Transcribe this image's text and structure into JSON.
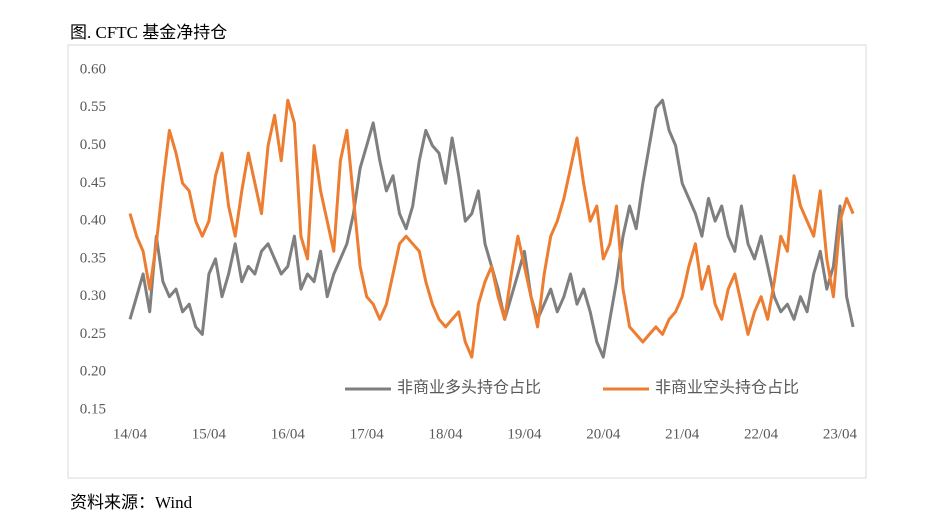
{
  "chart_data": {
    "type": "line",
    "title": "图. CFTC 基金净持仓",
    "source": "资料来源：Wind",
    "categories": [
      "14/04",
      null,
      null,
      null,
      null,
      null,
      null,
      null,
      null,
      null,
      null,
      null,
      "15/04",
      null,
      null,
      null,
      null,
      null,
      null,
      null,
      null,
      null,
      null,
      null,
      "16/04",
      null,
      null,
      null,
      null,
      null,
      null,
      null,
      null,
      null,
      null,
      null,
      "17/04",
      null,
      null,
      null,
      null,
      null,
      null,
      null,
      null,
      null,
      null,
      null,
      "18/04",
      null,
      null,
      null,
      null,
      null,
      null,
      null,
      null,
      null,
      null,
      null,
      "19/04",
      null,
      null,
      null,
      null,
      null,
      null,
      null,
      null,
      null,
      null,
      null,
      "20/04",
      null,
      null,
      null,
      null,
      null,
      null,
      null,
      null,
      null,
      null,
      null,
      "21/04",
      null,
      null,
      null,
      null,
      null,
      null,
      null,
      null,
      null,
      null,
      null,
      "22/04",
      null,
      null,
      null,
      null,
      null,
      null,
      null,
      null,
      null,
      null,
      null,
      "23/04",
      null,
      null
    ],
    "series": [
      {
        "name": "非商业多头持仓占比",
        "color": "#7f7f7f",
        "values": [
          0.27,
          0.3,
          0.33,
          0.28,
          0.38,
          0.32,
          0.3,
          0.31,
          0.28,
          0.29,
          0.26,
          0.25,
          0.33,
          0.35,
          0.3,
          0.33,
          0.37,
          0.32,
          0.34,
          0.33,
          0.36,
          0.37,
          0.35,
          0.33,
          0.34,
          0.38,
          0.31,
          0.33,
          0.32,
          0.36,
          0.3,
          0.33,
          0.35,
          0.37,
          0.41,
          0.47,
          0.5,
          0.53,
          0.48,
          0.44,
          0.46,
          0.41,
          0.39,
          0.42,
          0.48,
          0.52,
          0.5,
          0.49,
          0.45,
          0.51,
          0.46,
          0.4,
          0.41,
          0.44,
          0.37,
          0.34,
          0.31,
          0.27,
          0.3,
          0.33,
          0.36,
          0.3,
          0.27,
          0.29,
          0.31,
          0.28,
          0.3,
          0.33,
          0.29,
          0.31,
          0.28,
          0.24,
          0.22,
          0.27,
          0.32,
          0.38,
          0.42,
          0.39,
          0.45,
          0.5,
          0.55,
          0.56,
          0.52,
          0.5,
          0.45,
          0.43,
          0.41,
          0.38,
          0.43,
          0.4,
          0.42,
          0.38,
          0.36,
          0.42,
          0.37,
          0.35,
          0.38,
          0.34,
          0.3,
          0.28,
          0.29,
          0.27,
          0.3,
          0.28,
          0.33,
          0.36,
          0.31,
          0.34,
          0.42,
          0.3,
          0.26
        ]
      },
      {
        "name": "非商业空头持仓占比",
        "color": "#ed7d31",
        "values": [
          0.41,
          0.38,
          0.36,
          0.31,
          0.37,
          0.45,
          0.52,
          0.49,
          0.45,
          0.44,
          0.4,
          0.38,
          0.4,
          0.46,
          0.49,
          0.42,
          0.38,
          0.44,
          0.49,
          0.45,
          0.41,
          0.5,
          0.54,
          0.48,
          0.56,
          0.53,
          0.38,
          0.35,
          0.5,
          0.44,
          0.4,
          0.36,
          0.48,
          0.52,
          0.43,
          0.34,
          0.3,
          0.29,
          0.27,
          0.29,
          0.33,
          0.37,
          0.38,
          0.37,
          0.36,
          0.32,
          0.29,
          0.27,
          0.26,
          0.27,
          0.28,
          0.24,
          0.22,
          0.29,
          0.32,
          0.34,
          0.3,
          0.27,
          0.33,
          0.38,
          0.34,
          0.3,
          0.26,
          0.33,
          0.38,
          0.4,
          0.43,
          0.47,
          0.51,
          0.45,
          0.4,
          0.42,
          0.35,
          0.37,
          0.42,
          0.31,
          0.26,
          0.25,
          0.24,
          0.25,
          0.26,
          0.25,
          0.27,
          0.28,
          0.3,
          0.34,
          0.37,
          0.31,
          0.34,
          0.29,
          0.27,
          0.31,
          0.33,
          0.29,
          0.25,
          0.28,
          0.3,
          0.27,
          0.32,
          0.38,
          0.36,
          0.46,
          0.42,
          0.4,
          0.38,
          0.44,
          0.35,
          0.3,
          0.4,
          0.43,
          0.41
        ]
      }
    ],
    "ylim": [
      0.15,
      0.6
    ],
    "yticks": [
      {
        "value": 0.15,
        "label": "0.15"
      },
      {
        "value": 0.2,
        "label": "0.20"
      },
      {
        "value": 0.25,
        "label": "0.25"
      },
      {
        "value": 0.3,
        "label": "0.30"
      },
      {
        "value": 0.35,
        "label": "0.35"
      },
      {
        "value": 0.4,
        "label": "0.40"
      },
      {
        "value": 0.45,
        "label": "0.45"
      },
      {
        "value": 0.5,
        "label": "0.50"
      },
      {
        "value": 0.55,
        "label": "0.55"
      },
      {
        "value": 0.6,
        "label": "0.60"
      }
    ],
    "grid": false
  }
}
